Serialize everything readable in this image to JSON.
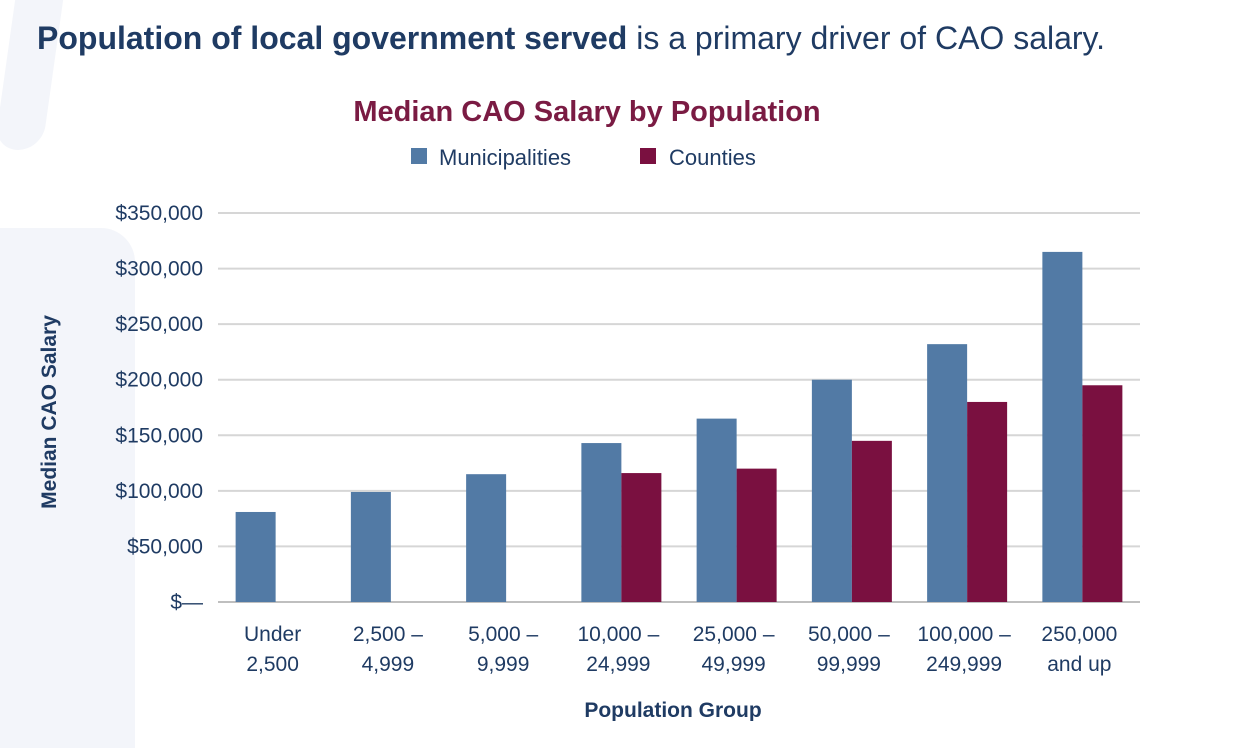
{
  "headline": {
    "bold": "Population of local government served",
    "rest": " is a primary driver of CAO salary."
  },
  "chart_data": {
    "type": "bar",
    "title": "Median CAO Salary by Population",
    "xlabel": "Population Group",
    "ylabel": "Median CAO Salary",
    "categories": [
      [
        "Under",
        "2,500"
      ],
      [
        "2,500 –",
        "4,999"
      ],
      [
        "5,000 –",
        "9,999"
      ],
      [
        "10,000 –",
        "24,999"
      ],
      [
        "25,000 –",
        "49,999"
      ],
      [
        "50,000 –",
        "99,999"
      ],
      [
        "100,000 –",
        "249,999"
      ],
      [
        "250,000",
        "and up"
      ]
    ],
    "series": [
      {
        "name": "Municipalities",
        "color": "#527aa5",
        "values": [
          81000,
          99000,
          115000,
          143000,
          165000,
          200000,
          232000,
          315000
        ]
      },
      {
        "name": "Counties",
        "color": "#7a1040",
        "values": [
          null,
          null,
          null,
          116000,
          120000,
          145000,
          180000,
          195000
        ]
      }
    ],
    "ylim": [
      0,
      350000
    ],
    "yticks": [
      0,
      50000,
      100000,
      150000,
      200000,
      250000,
      300000,
      350000
    ],
    "ytick_labels": [
      "$—",
      "$50,000",
      "$100,000",
      "$150,000",
      "$200,000",
      "$250,000",
      "$300,000",
      "$350,000"
    ],
    "grid": true,
    "legend": "top-center"
  }
}
